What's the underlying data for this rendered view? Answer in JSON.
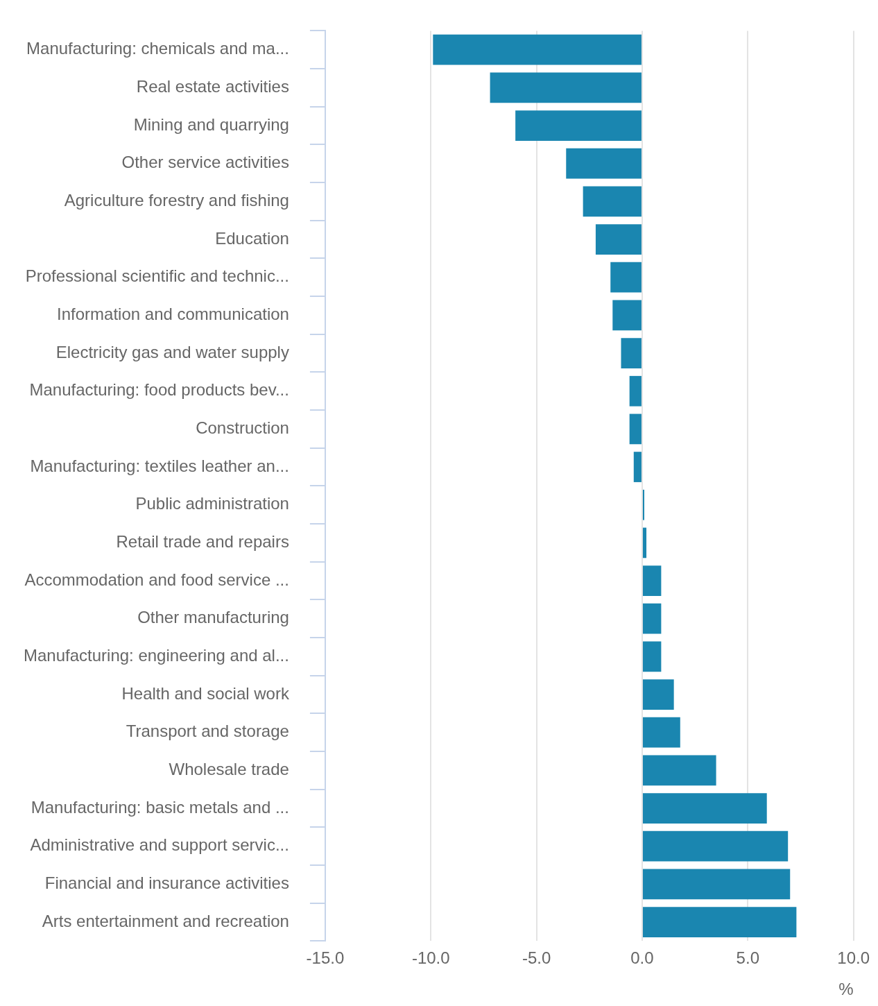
{
  "chart_data": {
    "type": "bar",
    "orientation": "horizontal",
    "categories": [
      "Manufacturing: chemicals and ma...",
      "Real estate activities",
      "Mining and quarrying",
      "Other service activities",
      "Agriculture forestry and fishing",
      "Education",
      "Professional scientific and technic...",
      "Information and communication",
      "Electricity gas and water supply",
      "Manufacturing: food products bev...",
      "Construction",
      "Manufacturing: textiles leather an...",
      "Public administration",
      "Retail trade and repairs",
      "Accommodation and food service ...",
      "Other manufacturing",
      "Manufacturing: engineering and al...",
      "Health and social work",
      "Transport and storage",
      "Wholesale trade",
      "Manufacturing: basic metals and ...",
      "Administrative and support servic...",
      "Financial and insurance activities",
      "Arts entertainment and recreation"
    ],
    "values": [
      -9.9,
      -7.2,
      -6.0,
      -3.6,
      -2.8,
      -2.2,
      -1.5,
      -1.4,
      -1.0,
      -0.6,
      -0.6,
      -0.4,
      0.1,
      0.2,
      0.9,
      0.9,
      0.9,
      1.5,
      1.8,
      3.5,
      5.9,
      6.9,
      7.0,
      7.3
    ],
    "color": "#1a86b0",
    "xlabel": "%",
    "xlim": [
      -15,
      10
    ],
    "xticks": [
      {
        "value": -15,
        "label": "-15.0"
      },
      {
        "value": -10,
        "label": "-10.0"
      },
      {
        "value": -5,
        "label": "-5.0"
      },
      {
        "value": 0,
        "label": "0.0"
      },
      {
        "value": 5,
        "label": "5.0"
      },
      {
        "value": 10,
        "label": "10.0"
      }
    ],
    "grid": "x",
    "legend": false
  }
}
